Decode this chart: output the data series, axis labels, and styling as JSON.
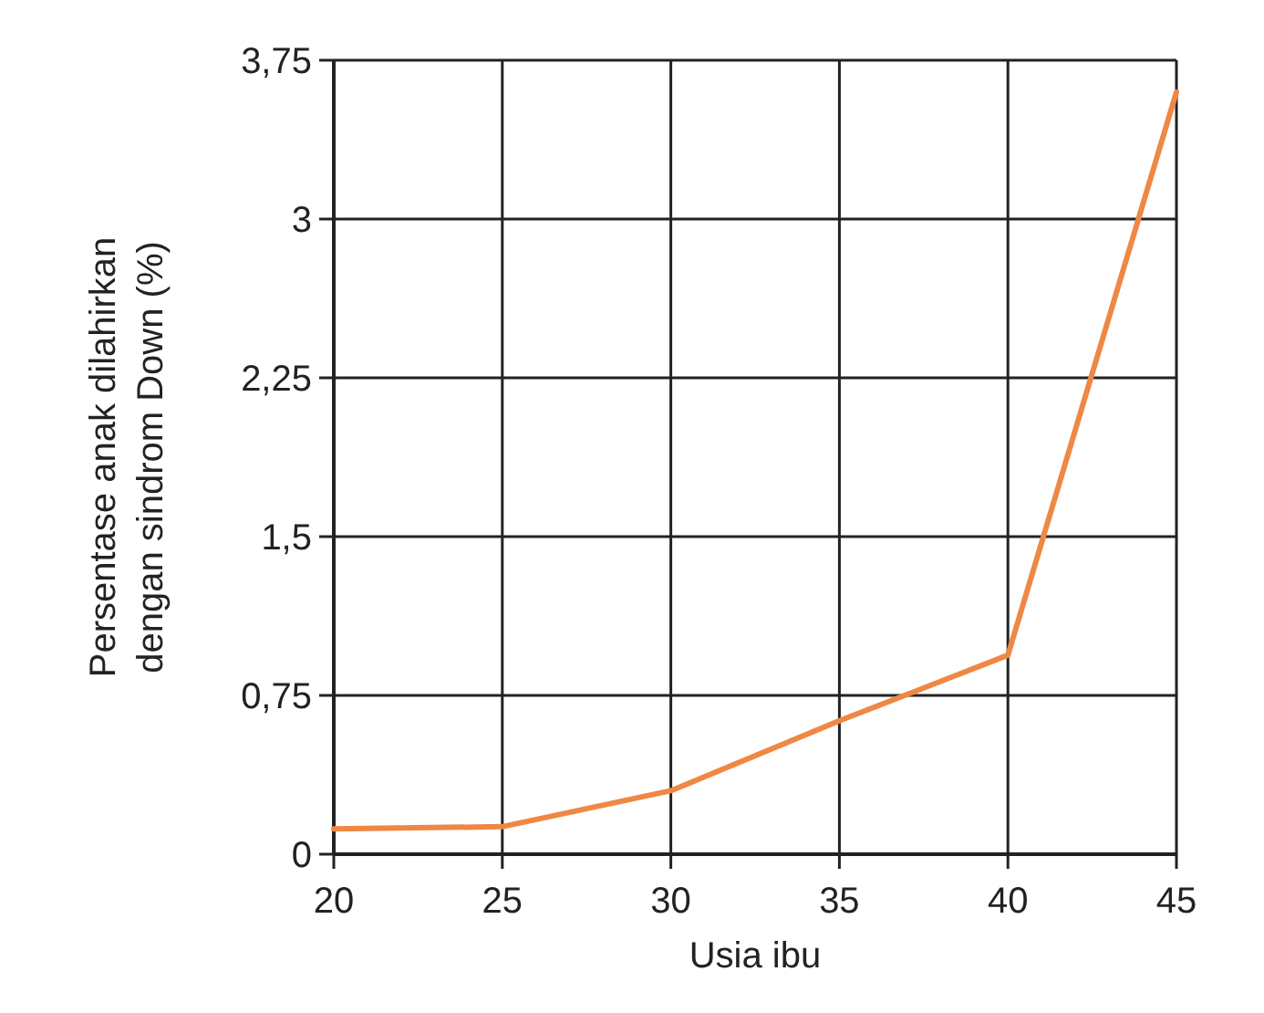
{
  "chart_data": {
    "type": "line",
    "xlabel": "Usia ibu",
    "ylabel": "Persentase anak dilahirkan dengan sindrom Down (%)",
    "x": [
      20,
      25,
      30,
      35,
      40,
      45
    ],
    "series": [
      {
        "color": "#ee8844",
        "values": [
          0.12,
          0.13,
          0.3,
          0.63,
          0.94,
          3.6
        ]
      }
    ],
    "xlim": [
      20,
      45
    ],
    "xticks": [
      20,
      25,
      30,
      35,
      40,
      45
    ],
    "ylim": [
      0,
      3.75
    ],
    "yticks": [
      {
        "value": 0,
        "label": "0"
      },
      {
        "value": 0.75,
        "label": "0,75"
      },
      {
        "value": 1.5,
        "label": "1,5"
      },
      {
        "value": 2.25,
        "label": "2,25"
      },
      {
        "value": 3,
        "label": "3"
      },
      {
        "value": 3.75,
        "label": "3,75"
      }
    ],
    "grid": true,
    "marker": "none",
    "line_style": "solid"
  }
}
